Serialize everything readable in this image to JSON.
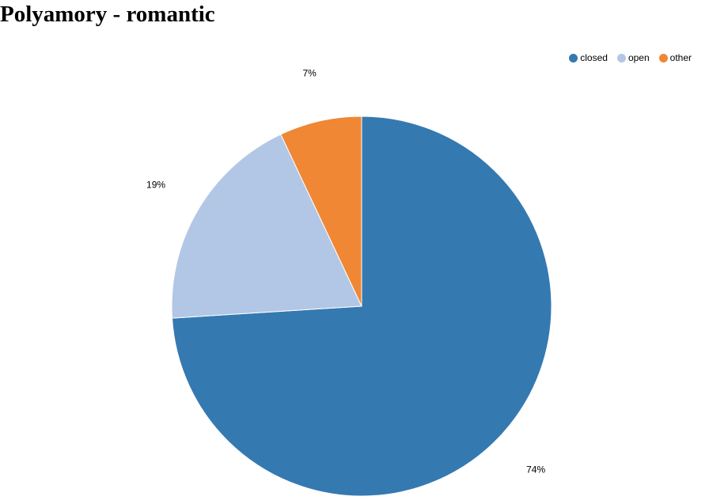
{
  "colors": {
    "closed": "#3579b1",
    "open": "#b2c7e6",
    "other": "#f08734"
  },
  "chart_data": {
    "type": "pie",
    "title": "Polyamory - romantic",
    "legend_position": "top-right",
    "slices": [
      {
        "name": "closed",
        "value": 74,
        "label": "74%",
        "color": "#3579b1"
      },
      {
        "name": "open",
        "value": 19,
        "label": "19%",
        "color": "#b2c7e6"
      },
      {
        "name": "other",
        "value": 7,
        "label": "7%",
        "color": "#f08734"
      }
    ]
  }
}
